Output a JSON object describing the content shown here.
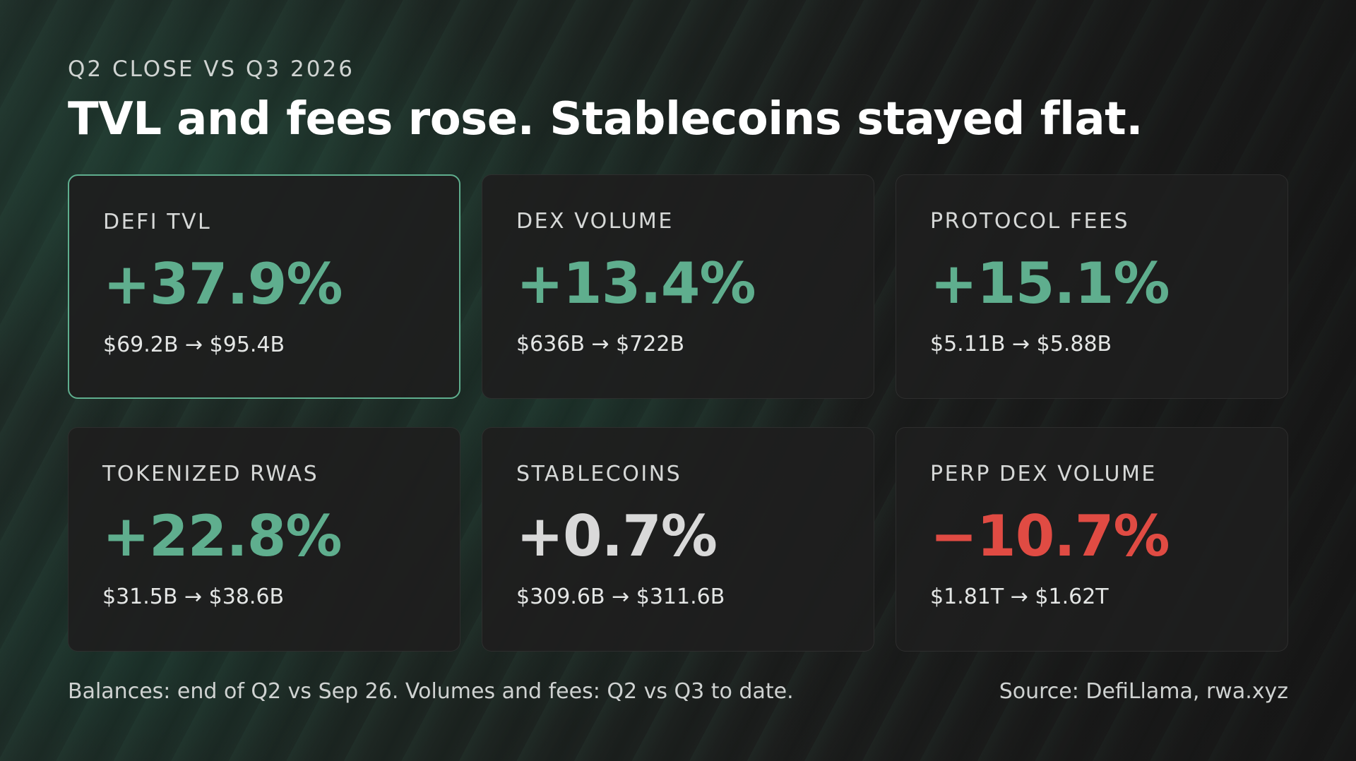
{
  "eyebrow": "Q2 CLOSE VS Q3 2026",
  "headline": "TVL and fees rose. Stablecoins stayed flat.",
  "colors": {
    "positive": "#5fae8e",
    "neutral": "#d9d9d9",
    "negative": "#e04b43",
    "highlight_border": "#5fae8e"
  },
  "cards": [
    {
      "label": "DEFI TVL",
      "value": "+37.9%",
      "range": "$69.2B → $95.4B",
      "tone": "positive",
      "highlight": true
    },
    {
      "label": "DEX VOLUME",
      "value": "+13.4%",
      "range": "$636B → $722B",
      "tone": "positive",
      "highlight": false
    },
    {
      "label": "PROTOCOL FEES",
      "value": "+15.1%",
      "range": "$5.11B → $5.88B",
      "tone": "positive",
      "highlight": false
    },
    {
      "label": "TOKENIZED RWAS",
      "value": "+22.8%",
      "range": "$31.5B → $38.6B",
      "tone": "positive",
      "highlight": false
    },
    {
      "label": "STABLECOINS",
      "value": "+0.7%",
      "range": "$309.6B → $311.6B",
      "tone": "neutral",
      "highlight": false
    },
    {
      "label": "PERP DEX VOLUME",
      "value": "−10.7%",
      "range": "$1.81T → $1.62T",
      "tone": "negative",
      "highlight": false
    }
  ],
  "footnote": "Balances: end of Q2 vs Sep 26. Volumes and fees: Q2 vs Q3 to date.",
  "source": "Source: DefiLlama, rwa.xyz"
}
